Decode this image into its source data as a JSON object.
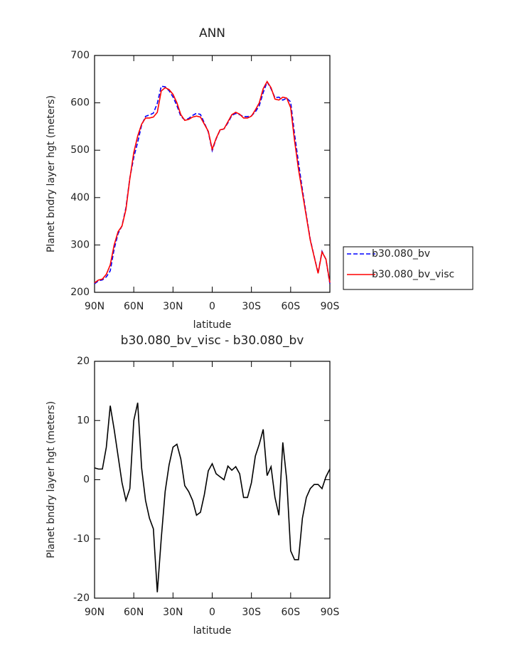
{
  "chart_data": [
    {
      "type": "line",
      "title": "ANN",
      "xlabel": "latitude",
      "ylabel": "Planet bndry layer hgt (meters)",
      "x": [
        90,
        87,
        84,
        81,
        78,
        75,
        72,
        69,
        66,
        63,
        60,
        57,
        54,
        51,
        48,
        45,
        42,
        39,
        36,
        33,
        30,
        27,
        24,
        21,
        18,
        15,
        12,
        9,
        6,
        3,
        0,
        -3,
        -6,
        -9,
        -12,
        -15,
        -18,
        -21,
        -24,
        -27,
        -30,
        -33,
        -36,
        -39,
        -42,
        -45,
        -48,
        -51,
        -54,
        -57,
        -60,
        -63,
        -66,
        -69,
        -72,
        -75,
        -78,
        -81,
        -84,
        -87,
        -90
      ],
      "series": [
        {
          "name": "b30.080_bv",
          "color": "#0000ff",
          "linestyle": "dashed",
          "values": [
            218,
            224.2,
            226.2,
            232.5,
            245.5,
            291.5,
            324,
            340.5,
            378.5,
            441.5,
            485,
            517,
            553,
            571.5,
            574.5,
            578.3,
            599,
            635,
            634,
            625.5,
            612.5,
            594,
            571.5,
            564,
            567,
            573.5,
            578,
            575.5,
            557.5,
            538.5,
            499.3,
            524,
            542.5,
            545,
            557.7,
            573.4,
            577.8,
            575,
            571,
            571,
            572.5,
            581,
            594,
            621.5,
            644.3,
            629.8,
            611,
            612,
            605.7,
            610,
            602,
            533.5,
            473.5,
            416.5,
            363,
            311.5,
            275.8,
            240.8,
            286.5,
            269.5,
            218.2
          ]
        },
        {
          "name": "b30.080_bv_visc",
          "color": "#ff0000",
          "linestyle": "solid",
          "values": [
            220,
            226,
            228,
            238,
            258,
            300,
            328,
            340,
            375,
            440,
            495,
            530,
            555,
            568,
            568,
            570,
            580,
            625,
            632,
            628,
            618,
            600,
            575,
            563,
            565,
            570,
            572,
            570,
            555,
            540,
            502,
            525,
            543,
            545,
            560,
            575,
            580,
            576,
            568,
            568,
            572,
            585,
            600,
            630,
            645,
            632,
            608,
            606,
            612,
            610,
            590,
            520,
            460,
            410,
            360,
            310,
            275,
            240,
            285,
            270,
            220
          ]
        }
      ],
      "xlim": [
        90,
        -90
      ],
      "xticks": [
        {
          "value": 90,
          "label": "90N"
        },
        {
          "value": 60,
          "label": "60N"
        },
        {
          "value": 30,
          "label": "30N"
        },
        0,
        {
          "value": -30,
          "label": "30S"
        },
        {
          "value": -60,
          "label": "60S"
        },
        {
          "value": -90,
          "label": "90S"
        }
      ],
      "ylim": [
        200,
        700
      ],
      "yticks": [
        200,
        300,
        400,
        500,
        600,
        700
      ],
      "legend": "right"
    },
    {
      "type": "line",
      "title": "b30.080_bv_visc - b30.080_bv",
      "xlabel": "latitude",
      "ylabel": "Planet bndry layer hgt (meters)",
      "x": [
        90,
        87,
        84,
        81,
        78,
        75,
        72,
        69,
        66,
        63,
        60,
        57,
        54,
        51,
        48,
        45,
        42,
        39,
        36,
        33,
        30,
        27,
        24,
        21,
        18,
        15,
        12,
        9,
        6,
        3,
        0,
        -3,
        -6,
        -9,
        -12,
        -15,
        -18,
        -21,
        -24,
        -27,
        -30,
        -33,
        -36,
        -39,
        -42,
        -45,
        -48,
        -51,
        -54,
        -57,
        -60,
        -63,
        -66,
        -69,
        -72,
        -75,
        -78,
        -81,
        -84,
        -87,
        -90
      ],
      "values": [
        2,
        1.8,
        1.8,
        5.5,
        12.5,
        8.5,
        4,
        -0.5,
        -3.5,
        -1.5,
        10,
        13,
        2,
        -3.5,
        -6.5,
        -8.3,
        -19,
        -10,
        -2,
        2.5,
        5.5,
        6,
        3.5,
        -1,
        -2,
        -3.5,
        -6,
        -5.5,
        -2.5,
        1.5,
        2.7,
        1,
        0.5,
        0,
        2.3,
        1.6,
        2.2,
        1,
        -3,
        -3,
        -0.5,
        4,
        6,
        8.5,
        0.7,
        2.2,
        -3,
        -6,
        6.3,
        0,
        -12,
        -13.5,
        -13.5,
        -6.5,
        -3,
        -1.5,
        -0.8,
        -0.8,
        -1.5,
        0.5,
        1.8
      ],
      "color": "#000000",
      "xlim": [
        90,
        -90
      ],
      "xticks": [
        {
          "value": 90,
          "label": "90N"
        },
        {
          "value": 60,
          "label": "60N"
        },
        {
          "value": 30,
          "label": "30N"
        },
        0,
        {
          "value": -30,
          "label": "30S"
        },
        {
          "value": -60,
          "label": "60S"
        },
        {
          "value": -90,
          "label": "90S"
        }
      ],
      "ylim": [
        -20,
        20
      ],
      "yticks": [
        -20,
        -10,
        0,
        10,
        20
      ]
    }
  ]
}
